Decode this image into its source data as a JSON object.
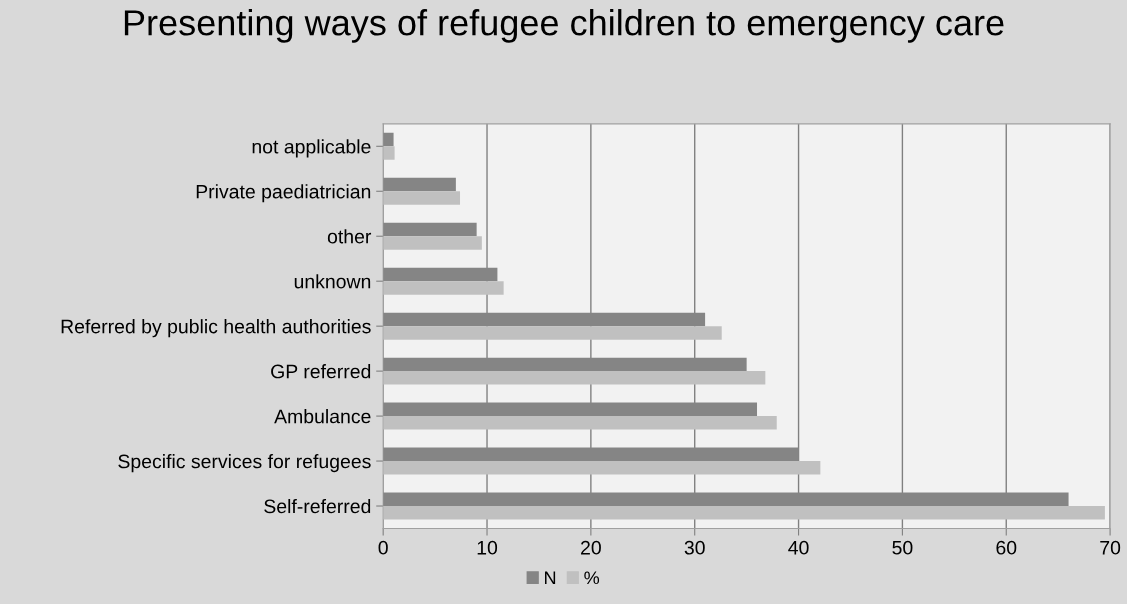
{
  "chart_data": {
    "type": "bar",
    "orientation": "horizontal",
    "title": "Presenting ways of refugee children to emergency care",
    "categories": [
      "not applicable",
      "Private paediatrician",
      "other",
      "unknown",
      "Referred by public health authorities",
      "GP referred",
      "Ambulance",
      "Specific services for refugees",
      "Self-referred"
    ],
    "series": [
      {
        "name": "N",
        "color": "#858585",
        "values": [
          1,
          7,
          9,
          11,
          31,
          35,
          36,
          40,
          66
        ]
      },
      {
        "name": "%",
        "color": "#c0c0c0",
        "values": [
          1.1,
          7.4,
          9.5,
          11.6,
          32.6,
          36.8,
          37.9,
          42.1,
          69.5
        ]
      }
    ],
    "xlim": [
      0,
      70
    ],
    "xticks": [
      0,
      10,
      20,
      30,
      40,
      50,
      60,
      70
    ],
    "grid": "x",
    "legend": "bottom"
  }
}
